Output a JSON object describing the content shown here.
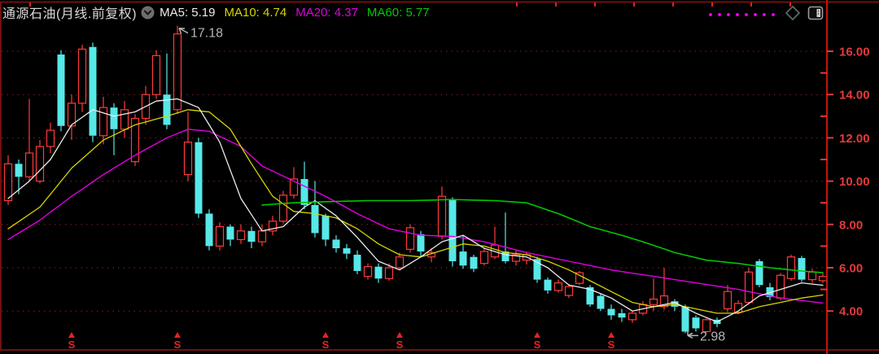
{
  "window": {
    "background": "#000000"
  },
  "header": {
    "title": "通源石油(月线.前复权)",
    "legend": [
      {
        "label": "MA5:",
        "value": "5.19",
        "color": "#ececec"
      },
      {
        "label": "MA10:",
        "value": "4.74",
        "color": "#d6d600"
      },
      {
        "label": "MA20:",
        "value": "4.37",
        "color": "#df00df"
      },
      {
        "label": "MA60:",
        "value": "5.77",
        "color": "#00c800"
      }
    ]
  },
  "toolbar": {
    "dotted_line": {
      "color": "#ff00ff",
      "dot_count": 8
    },
    "icons": [
      "diamond-icon",
      "panel-icon"
    ]
  },
  "y_axis": {
    "side": "right",
    "label_color": "#e23b3b",
    "ticks": [
      {
        "label": "16.00",
        "value": 16
      },
      {
        "label": "14.00",
        "value": 14
      },
      {
        "label": "12.00",
        "value": 12
      },
      {
        "label": "10.00",
        "value": 10
      },
      {
        "label": "8.00",
        "value": 8
      },
      {
        "label": "6.00",
        "value": 6
      },
      {
        "label": "4.00",
        "value": 4
      }
    ],
    "minor_tick_values": [
      15,
      13,
      11,
      9,
      7,
      5
    ]
  },
  "annotations": {
    "color": "#b5b5b5",
    "high": {
      "text": "17.18",
      "candle_index": 16,
      "price": 17.18
    },
    "low": {
      "text": "2.98",
      "candle_index": 64,
      "price": 2.98
    }
  },
  "event_markers": {
    "glyph": "S",
    "color": "#e62222",
    "candle_indices": [
      6,
      16,
      30,
      37,
      50,
      57
    ]
  },
  "chart_data": {
    "type": "candlestick",
    "period": "monthly",
    "title": "通源石油 月线 前复权",
    "up_color": "#ff3b3b",
    "down_color": "#57e8e8",
    "grid": {
      "color": "#8b1e1e",
      "style": "dotted",
      "values": [
        16,
        14,
        12,
        10,
        8,
        6,
        4
      ]
    },
    "price_low": 2.98,
    "price_high": 17.18,
    "candles_ohlc": [
      [
        9.1,
        11.2,
        8.9,
        10.8
      ],
      [
        10.8,
        11.0,
        9.4,
        10.2
      ],
      [
        10.2,
        13.8,
        10.0,
        11.3
      ],
      [
        10.0,
        11.9,
        9.9,
        11.6
      ],
      [
        11.6,
        12.7,
        11.3,
        12.35
      ],
      [
        15.85,
        16.05,
        12.3,
        12.55
      ],
      [
        12.55,
        14.0,
        11.9,
        13.6
      ],
      [
        13.6,
        16.3,
        13.2,
        16.1
      ],
      [
        16.2,
        16.4,
        11.8,
        12.1
      ],
      [
        12.1,
        13.9,
        11.7,
        13.4
      ],
      [
        13.4,
        13.6,
        11.2,
        12.4
      ],
      [
        12.4,
        13.7,
        12.0,
        13.3
      ],
      [
        10.9,
        13.1,
        10.7,
        12.9
      ],
      [
        12.9,
        14.4,
        12.6,
        14.0
      ],
      [
        14.0,
        16.05,
        13.8,
        15.8
      ],
      [
        14.0,
        15.9,
        12.4,
        12.6
      ],
      [
        13.3,
        17.18,
        13.1,
        16.8
      ],
      [
        10.3,
        13.2,
        10.0,
        11.8
      ],
      [
        11.8,
        12.0,
        8.3,
        8.5
      ],
      [
        8.5,
        8.7,
        6.8,
        7.0
      ],
      [
        7.0,
        8.1,
        6.8,
        7.9
      ],
      [
        7.9,
        8.0,
        7.0,
        7.3
      ],
      [
        7.3,
        8.0,
        7.1,
        7.7
      ],
      [
        7.7,
        7.9,
        6.9,
        7.2
      ],
      [
        7.2,
        8.0,
        7.0,
        7.7
      ],
      [
        7.7,
        8.4,
        7.5,
        8.15
      ],
      [
        8.15,
        9.55,
        8.05,
        9.35
      ],
      [
        9.35,
        10.65,
        9.2,
        10.1
      ],
      [
        10.1,
        10.9,
        8.7,
        8.9
      ],
      [
        8.9,
        10.0,
        7.4,
        7.6
      ],
      [
        8.4,
        8.5,
        7.0,
        7.3
      ],
      [
        7.3,
        7.5,
        6.7,
        6.9
      ],
      [
        6.9,
        7.1,
        6.4,
        6.65
      ],
      [
        6.6,
        6.8,
        5.7,
        5.85
      ],
      [
        5.6,
        6.2,
        5.45,
        6.05
      ],
      [
        6.05,
        6.2,
        5.3,
        5.5
      ],
      [
        5.5,
        6.2,
        5.4,
        6.0
      ],
      [
        6.0,
        6.7,
        5.9,
        6.5
      ],
      [
        6.85,
        8.0,
        6.7,
        7.85
      ],
      [
        7.55,
        7.7,
        6.5,
        6.75
      ],
      [
        6.5,
        6.9,
        6.25,
        6.7
      ],
      [
        7.45,
        9.75,
        7.3,
        9.3
      ],
      [
        9.15,
        9.25,
        6.05,
        6.3
      ],
      [
        6.75,
        7.5,
        5.95,
        6.1
      ],
      [
        6.5,
        6.6,
        5.8,
        5.95
      ],
      [
        6.2,
        6.9,
        6.1,
        6.75
      ],
      [
        6.5,
        7.9,
        6.4,
        7.05
      ],
      [
        6.75,
        8.55,
        6.2,
        6.3
      ],
      [
        6.3,
        6.8,
        6.1,
        6.6
      ],
      [
        6.35,
        6.75,
        6.15,
        6.6
      ],
      [
        6.4,
        6.5,
        5.3,
        5.45
      ],
      [
        5.45,
        5.55,
        4.8,
        4.95
      ],
      [
        4.95,
        5.45,
        4.85,
        5.3
      ],
      [
        4.72,
        5.25,
        4.6,
        5.13
      ],
      [
        5.28,
        5.85,
        5.2,
        5.77
      ],
      [
        5.1,
        5.2,
        4.2,
        4.3
      ],
      [
        4.7,
        4.8,
        4.0,
        4.1
      ],
      [
        4.1,
        4.3,
        3.6,
        3.8
      ],
      [
        3.9,
        4.1,
        3.5,
        3.7
      ],
      [
        3.6,
        4.0,
        3.45,
        3.9
      ],
      [
        3.9,
        4.45,
        3.8,
        4.3
      ],
      [
        4.3,
        5.5,
        4.0,
        4.55
      ],
      [
        4.2,
        6.0,
        4.05,
        4.7
      ],
      [
        4.45,
        4.55,
        4.0,
        4.2
      ],
      [
        4.2,
        4.3,
        2.98,
        3.05
      ],
      [
        3.7,
        3.8,
        3.05,
        3.2
      ],
      [
        3.05,
        3.7,
        3.0,
        3.6
      ],
      [
        3.6,
        3.7,
        3.25,
        3.4
      ],
      [
        4.1,
        5.2,
        3.95,
        4.9
      ],
      [
        3.95,
        4.5,
        3.85,
        4.35
      ],
      [
        4.4,
        6.0,
        4.3,
        5.8
      ],
      [
        6.3,
        6.4,
        5.1,
        5.2
      ],
      [
        5.1,
        5.3,
        4.5,
        4.65
      ],
      [
        4.6,
        5.75,
        4.5,
        5.65
      ],
      [
        5.5,
        6.6,
        5.4,
        6.5
      ],
      [
        6.45,
        6.55,
        5.35,
        5.45
      ],
      [
        5.45,
        5.95,
        5.3,
        5.8
      ],
      [
        5.4,
        5.75,
        5.3,
        5.6
      ]
    ],
    "moving_averages": [
      {
        "name": "MA5",
        "color": "#ececec",
        "current": 5.19,
        "width": 1.3,
        "keypoints": [
          [
            0,
            9.2
          ],
          [
            2,
            10.0
          ],
          [
            4,
            11.0
          ],
          [
            6,
            12.6
          ],
          [
            8,
            13.3
          ],
          [
            10,
            13.0
          ],
          [
            12,
            13.2
          ],
          [
            14,
            13.7
          ],
          [
            16,
            13.8
          ],
          [
            18,
            13.4
          ],
          [
            20,
            11.8
          ],
          [
            22,
            9.2
          ],
          [
            24,
            7.7
          ],
          [
            26,
            7.9
          ],
          [
            28,
            8.8
          ],
          [
            29,
            9.1
          ],
          [
            31,
            8.4
          ],
          [
            33,
            7.4
          ],
          [
            35,
            6.3
          ],
          [
            37,
            5.9
          ],
          [
            39,
            6.5
          ],
          [
            41,
            7.2
          ],
          [
            43,
            7.5
          ],
          [
            45,
            6.9
          ],
          [
            47,
            6.6
          ],
          [
            49,
            6.5
          ],
          [
            51,
            6.0
          ],
          [
            53,
            5.2
          ],
          [
            55,
            5.0
          ],
          [
            57,
            4.6
          ],
          [
            59,
            4.0
          ],
          [
            61,
            4.2
          ],
          [
            63,
            4.4
          ],
          [
            65,
            3.9
          ],
          [
            67,
            3.5
          ],
          [
            69,
            4.0
          ],
          [
            71,
            4.7
          ],
          [
            73,
            5.0
          ],
          [
            75,
            5.3
          ],
          [
            77,
            5.19
          ]
        ]
      },
      {
        "name": "MA10",
        "color": "#d6d600",
        "current": 4.74,
        "width": 1.3,
        "keypoints": [
          [
            0,
            7.8
          ],
          [
            3,
            8.8
          ],
          [
            6,
            10.6
          ],
          [
            9,
            11.9
          ],
          [
            12,
            12.6
          ],
          [
            15,
            13.0
          ],
          [
            17,
            13.3
          ],
          [
            19,
            13.2
          ],
          [
            21,
            12.4
          ],
          [
            23,
            10.8
          ],
          [
            25,
            9.3
          ],
          [
            27,
            8.6
          ],
          [
            29,
            8.5
          ],
          [
            31,
            8.3
          ],
          [
            33,
            7.8
          ],
          [
            35,
            7.1
          ],
          [
            37,
            6.6
          ],
          [
            39,
            6.5
          ],
          [
            41,
            6.8
          ],
          [
            43,
            7.1
          ],
          [
            45,
            7.0
          ],
          [
            47,
            6.7
          ],
          [
            49,
            6.6
          ],
          [
            51,
            6.3
          ],
          [
            53,
            5.9
          ],
          [
            55,
            5.4
          ],
          [
            57,
            4.9
          ],
          [
            59,
            4.4
          ],
          [
            61,
            4.2
          ],
          [
            63,
            4.3
          ],
          [
            65,
            4.1
          ],
          [
            67,
            3.9
          ],
          [
            69,
            3.9
          ],
          [
            71,
            4.2
          ],
          [
            73,
            4.4
          ],
          [
            75,
            4.6
          ],
          [
            77,
            4.74
          ]
        ]
      },
      {
        "name": "MA20",
        "color": "#df00df",
        "current": 4.37,
        "width": 1.4,
        "keypoints": [
          [
            0,
            7.3
          ],
          [
            3,
            8.2
          ],
          [
            6,
            9.3
          ],
          [
            9,
            10.3
          ],
          [
            12,
            11.2
          ],
          [
            15,
            12.0
          ],
          [
            17,
            12.4
          ],
          [
            19,
            12.3
          ],
          [
            22,
            11.6
          ],
          [
            24,
            10.7
          ],
          [
            27,
            10.0
          ],
          [
            30,
            9.3
          ],
          [
            33,
            8.5
          ],
          [
            36,
            7.8
          ],
          [
            39,
            7.5
          ],
          [
            42,
            7.45
          ],
          [
            45,
            7.2
          ],
          [
            49,
            6.7
          ],
          [
            53,
            6.3
          ],
          [
            57,
            5.9
          ],
          [
            61,
            5.6
          ],
          [
            65,
            5.3
          ],
          [
            69,
            5.0
          ],
          [
            73,
            4.6
          ],
          [
            77,
            4.37
          ]
        ]
      },
      {
        "name": "MA60",
        "color": "#00c800",
        "current": 5.77,
        "width": 1.6,
        "keypoints": [
          [
            24,
            8.9
          ],
          [
            27,
            9.0
          ],
          [
            30,
            9.05
          ],
          [
            34,
            9.1
          ],
          [
            38,
            9.1
          ],
          [
            42,
            9.15
          ],
          [
            46,
            9.1
          ],
          [
            49,
            9.0
          ],
          [
            52,
            8.5
          ],
          [
            55,
            7.9
          ],
          [
            58,
            7.5
          ],
          [
            60,
            7.2
          ],
          [
            63,
            6.7
          ],
          [
            66,
            6.35
          ],
          [
            69,
            6.2
          ],
          [
            72,
            6.0
          ],
          [
            75,
            5.85
          ],
          [
            77,
            5.77
          ]
        ]
      }
    ]
  }
}
